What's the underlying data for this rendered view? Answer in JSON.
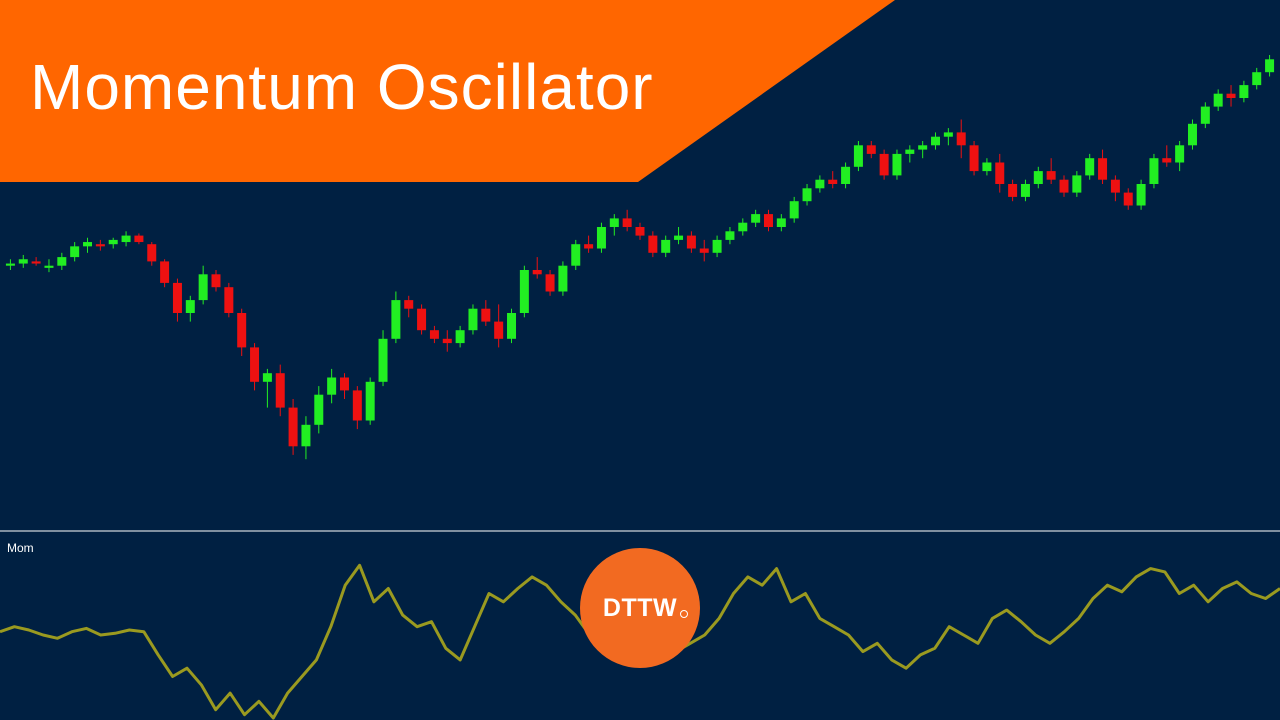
{
  "title": "Momentum Oscillator",
  "colors": {
    "background": "#002042",
    "banner": "#ff6600",
    "up": "#22ee22",
    "down": "#ee1111",
    "momentum_line": "#9a9a20",
    "separator": "#ffffff",
    "logo": "#f26a21"
  },
  "logo": {
    "text": "DTTW"
  },
  "chart_data": [
    {
      "type": "candlestick",
      "title": "",
      "grid": false,
      "legend": "none",
      "ylim": [
        0,
        1
      ],
      "ohlc": [
        [
          0.51,
          0.525,
          0.5,
          0.515
        ],
        [
          0.515,
          0.535,
          0.505,
          0.525
        ],
        [
          0.52,
          0.53,
          0.51,
          0.515
        ],
        [
          0.505,
          0.525,
          0.495,
          0.51
        ],
        [
          0.51,
          0.54,
          0.5,
          0.53
        ],
        [
          0.53,
          0.565,
          0.52,
          0.555
        ],
        [
          0.555,
          0.575,
          0.54,
          0.565
        ],
        [
          0.56,
          0.57,
          0.545,
          0.555
        ],
        [
          0.56,
          0.575,
          0.55,
          0.57
        ],
        [
          0.565,
          0.59,
          0.555,
          0.58
        ],
        [
          0.58,
          0.585,
          0.56,
          0.565
        ],
        [
          0.56,
          0.565,
          0.51,
          0.52
        ],
        [
          0.52,
          0.525,
          0.46,
          0.47
        ],
        [
          0.47,
          0.48,
          0.38,
          0.4
        ],
        [
          0.4,
          0.44,
          0.38,
          0.43
        ],
        [
          0.43,
          0.51,
          0.42,
          0.49
        ],
        [
          0.49,
          0.5,
          0.45,
          0.46
        ],
        [
          0.46,
          0.47,
          0.39,
          0.4
        ],
        [
          0.4,
          0.41,
          0.3,
          0.32
        ],
        [
          0.32,
          0.33,
          0.22,
          0.24
        ],
        [
          0.24,
          0.27,
          0.18,
          0.26
        ],
        [
          0.26,
          0.28,
          0.16,
          0.18
        ],
        [
          0.18,
          0.2,
          0.07,
          0.09
        ],
        [
          0.09,
          0.16,
          0.06,
          0.14
        ],
        [
          0.14,
          0.23,
          0.12,
          0.21
        ],
        [
          0.21,
          0.27,
          0.19,
          0.25
        ],
        [
          0.25,
          0.26,
          0.2,
          0.22
        ],
        [
          0.22,
          0.23,
          0.13,
          0.15
        ],
        [
          0.15,
          0.25,
          0.14,
          0.24
        ],
        [
          0.24,
          0.36,
          0.23,
          0.34
        ],
        [
          0.34,
          0.45,
          0.33,
          0.43
        ],
        [
          0.43,
          0.44,
          0.39,
          0.41
        ],
        [
          0.41,
          0.42,
          0.35,
          0.36
        ],
        [
          0.36,
          0.37,
          0.33,
          0.34
        ],
        [
          0.34,
          0.36,
          0.31,
          0.33
        ],
        [
          0.33,
          0.37,
          0.32,
          0.36
        ],
        [
          0.36,
          0.42,
          0.35,
          0.41
        ],
        [
          0.41,
          0.43,
          0.37,
          0.38
        ],
        [
          0.38,
          0.42,
          0.32,
          0.34
        ],
        [
          0.34,
          0.41,
          0.33,
          0.4
        ],
        [
          0.4,
          0.51,
          0.39,
          0.5
        ],
        [
          0.5,
          0.53,
          0.48,
          0.49
        ],
        [
          0.49,
          0.5,
          0.44,
          0.45
        ],
        [
          0.45,
          0.52,
          0.44,
          0.51
        ],
        [
          0.51,
          0.57,
          0.5,
          0.56
        ],
        [
          0.56,
          0.58,
          0.54,
          0.55
        ],
        [
          0.55,
          0.61,
          0.54,
          0.6
        ],
        [
          0.6,
          0.63,
          0.58,
          0.62
        ],
        [
          0.62,
          0.64,
          0.59,
          0.6
        ],
        [
          0.6,
          0.61,
          0.57,
          0.58
        ],
        [
          0.58,
          0.59,
          0.53,
          0.54
        ],
        [
          0.54,
          0.58,
          0.53,
          0.57
        ],
        [
          0.57,
          0.6,
          0.56,
          0.58
        ],
        [
          0.58,
          0.59,
          0.54,
          0.55
        ],
        [
          0.55,
          0.57,
          0.52,
          0.54
        ],
        [
          0.54,
          0.58,
          0.53,
          0.57
        ],
        [
          0.57,
          0.6,
          0.56,
          0.59
        ],
        [
          0.59,
          0.62,
          0.58,
          0.61
        ],
        [
          0.61,
          0.64,
          0.6,
          0.63
        ],
        [
          0.63,
          0.64,
          0.59,
          0.6
        ],
        [
          0.6,
          0.63,
          0.59,
          0.62
        ],
        [
          0.62,
          0.67,
          0.61,
          0.66
        ],
        [
          0.66,
          0.7,
          0.65,
          0.69
        ],
        [
          0.69,
          0.72,
          0.68,
          0.71
        ],
        [
          0.71,
          0.73,
          0.69,
          0.7
        ],
        [
          0.7,
          0.75,
          0.69,
          0.74
        ],
        [
          0.74,
          0.8,
          0.73,
          0.79
        ],
        [
          0.79,
          0.8,
          0.76,
          0.77
        ],
        [
          0.77,
          0.78,
          0.71,
          0.72
        ],
        [
          0.72,
          0.78,
          0.71,
          0.77
        ],
        [
          0.77,
          0.79,
          0.75,
          0.78
        ],
        [
          0.78,
          0.8,
          0.76,
          0.79
        ],
        [
          0.79,
          0.82,
          0.78,
          0.81
        ],
        [
          0.81,
          0.83,
          0.79,
          0.82
        ],
        [
          0.82,
          0.85,
          0.76,
          0.79
        ],
        [
          0.79,
          0.8,
          0.72,
          0.73
        ],
        [
          0.73,
          0.76,
          0.72,
          0.75
        ],
        [
          0.75,
          0.77,
          0.68,
          0.7
        ],
        [
          0.7,
          0.71,
          0.66,
          0.67
        ],
        [
          0.67,
          0.71,
          0.66,
          0.7
        ],
        [
          0.7,
          0.74,
          0.69,
          0.73
        ],
        [
          0.73,
          0.76,
          0.7,
          0.71
        ],
        [
          0.71,
          0.72,
          0.67,
          0.68
        ],
        [
          0.68,
          0.73,
          0.67,
          0.72
        ],
        [
          0.72,
          0.77,
          0.71,
          0.76
        ],
        [
          0.76,
          0.78,
          0.7,
          0.71
        ],
        [
          0.71,
          0.72,
          0.66,
          0.68
        ],
        [
          0.68,
          0.69,
          0.64,
          0.65
        ],
        [
          0.65,
          0.71,
          0.64,
          0.7
        ],
        [
          0.7,
          0.77,
          0.69,
          0.76
        ],
        [
          0.76,
          0.79,
          0.74,
          0.75
        ],
        [
          0.75,
          0.8,
          0.73,
          0.79
        ],
        [
          0.79,
          0.85,
          0.78,
          0.84
        ],
        [
          0.84,
          0.89,
          0.83,
          0.88
        ],
        [
          0.88,
          0.92,
          0.87,
          0.91
        ],
        [
          0.91,
          0.93,
          0.88,
          0.9
        ],
        [
          0.9,
          0.94,
          0.89,
          0.93
        ],
        [
          0.93,
          0.97,
          0.92,
          0.96
        ],
        [
          0.96,
          1.0,
          0.95,
          0.99
        ]
      ]
    },
    {
      "type": "line",
      "series": [
        {
          "name": "Mom",
          "values": [
            0.52,
            0.55,
            0.53,
            0.5,
            0.48,
            0.52,
            0.54,
            0.5,
            0.51,
            0.53,
            0.52,
            0.38,
            0.25,
            0.3,
            0.2,
            0.05,
            0.15,
            0.02,
            0.1,
            0.0,
            0.15,
            0.25,
            0.35,
            0.55,
            0.8,
            0.92,
            0.7,
            0.78,
            0.62,
            0.55,
            0.58,
            0.42,
            0.35,
            0.55,
            0.75,
            0.7,
            0.78,
            0.85,
            0.8,
            0.7,
            0.62,
            0.5,
            0.45,
            0.4,
            0.38,
            0.42,
            0.35,
            0.4,
            0.45,
            0.5,
            0.6,
            0.75,
            0.85,
            0.8,
            0.9,
            0.7,
            0.75,
            0.6,
            0.55,
            0.5,
            0.4,
            0.45,
            0.35,
            0.3,
            0.38,
            0.42,
            0.55,
            0.5,
            0.45,
            0.6,
            0.65,
            0.58,
            0.5,
            0.45,
            0.52,
            0.6,
            0.72,
            0.8,
            0.76,
            0.85,
            0.9,
            0.88,
            0.75,
            0.8,
            0.7,
            0.78,
            0.82,
            0.75,
            0.72,
            0.78
          ]
        }
      ],
      "legend": "none",
      "grid": false
    }
  ]
}
